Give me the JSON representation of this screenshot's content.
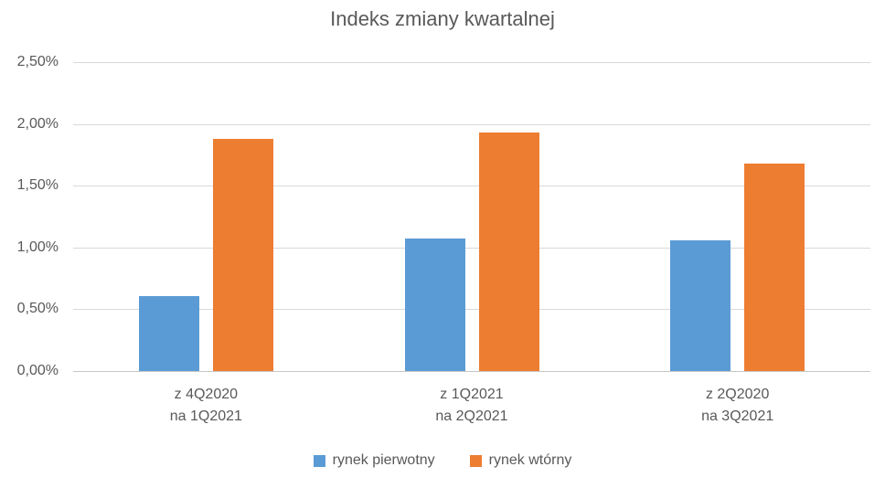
{
  "colors": {
    "series_primary": "#5B9BD5",
    "series_secondary": "#ED7D31",
    "text": "#595959",
    "gridline": "#D9D9D9",
    "background": "#FFFFFF"
  },
  "chart_data": {
    "type": "bar",
    "title": "Indeks zmiany kwartalnej",
    "xlabel": "",
    "ylabel": "",
    "unit": "%",
    "grid": true,
    "legend_position": "bottom",
    "ylim": [
      0,
      2.5
    ],
    "categories": [
      {
        "line1": "z 4Q2020",
        "line2": "na 1Q2021"
      },
      {
        "line1": "z 1Q2021",
        "line2": "na 2Q2021"
      },
      {
        "line1": "z 2Q2020",
        "line2": "na 3Q2021"
      }
    ],
    "yticks": [
      {
        "label": "0,00%",
        "value": 0
      },
      {
        "label": "0,50%",
        "value": 0.5
      },
      {
        "label": "1,00%",
        "value": 1.0
      },
      {
        "label": "1,50%",
        "value": 1.5
      },
      {
        "label": "2,00%",
        "value": 2.0
      },
      {
        "label": "2,50%",
        "value": 2.5
      }
    ],
    "series": [
      {
        "name": "rynek pierwotny",
        "color": "#5B9BD5",
        "values": [
          0.61,
          1.07,
          1.06
        ]
      },
      {
        "name": "rynek wtórny",
        "color": "#ED7D31",
        "values": [
          1.88,
          1.93,
          1.68
        ]
      }
    ]
  }
}
